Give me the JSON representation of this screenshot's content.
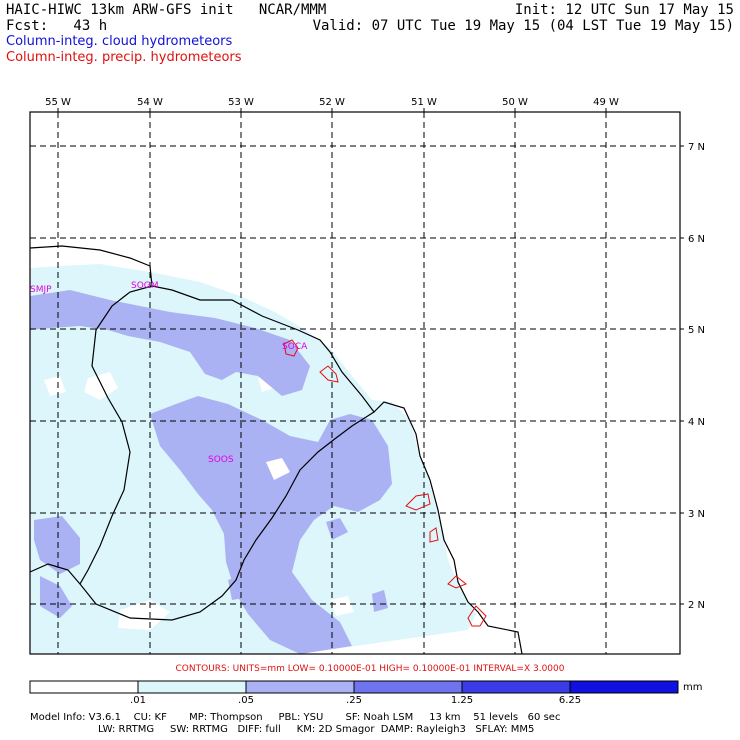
{
  "header": {
    "line1_left": "HAIC-HIWC 13km ARW-GFS init   NCAR/MMM",
    "line2_left": "Fcst:   43 h",
    "line1_right": "Init: 12 UTC Sun 17 May 15",
    "line2_right": "Valid: 07 UTC Tue 19 May 15 (04 LST Tue 19 May 15)",
    "cloud_label": "Column-integ. cloud hydrometeors",
    "precip_label": "Column-integ. precip. hydrometeors"
  },
  "longitude_labels": [
    "55 W",
    "54 W",
    "53 W",
    "52 W",
    "51 W",
    "50 W",
    "49 W"
  ],
  "latitude_labels": [
    "7 N",
    "6 N",
    "5 N",
    "4 N",
    "3 N",
    "2 N"
  ],
  "stations": [
    "SMJP",
    "SOGM",
    "SOCA",
    "SOOS"
  ],
  "contours_text": "CONTOURS:  UNITS=mm   LOW= 0.10000E-01   HIGH= 0.10000E-01   INTERVAL=X   3.0000",
  "colorbar": {
    "unit": "mm",
    "ticks": [
      ".01",
      ".05",
      ".25",
      "1.25",
      "6.25"
    ],
    "colors": [
      "#ffffff",
      "#ddf6fb",
      "#aab2f4",
      "#6f74ee",
      "#3a3ce8",
      "#1010e0"
    ]
  },
  "model_info": {
    "line1": "Model Info: V3.6.1    CU: KF       MP: Thompson     PBL: YSU       SF: Noah LSM     13 km    51 levels   60 sec",
    "line2": "LW: RRTMG     SW: RRTMG   DIFF: full     KM: 2D Smagor  DAMP: Rayleigh3   SFLAY: MM5"
  },
  "colors": {
    "cloud_light": "#ddf6fb",
    "cloud_medium": "#aab2f4",
    "precip_contour": "#e01010",
    "station": "#e000e0"
  }
}
